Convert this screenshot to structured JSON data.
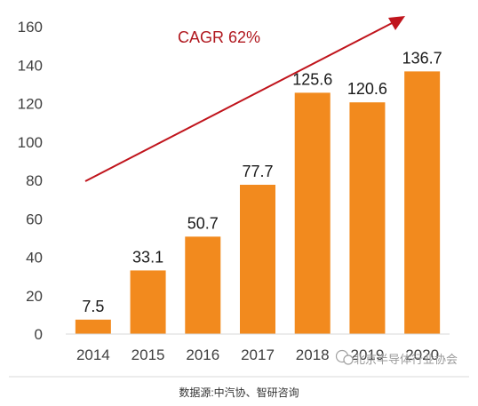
{
  "chart_data": {
    "type": "bar",
    "categories": [
      "2014",
      "2015",
      "2016",
      "2017",
      "2018",
      "2019",
      "2020"
    ],
    "values": [
      7.5,
      33.1,
      50.7,
      77.7,
      125.6,
      120.6,
      136.7
    ],
    "data_labels": [
      "7.5",
      "33.1",
      "50.7",
      "77.7",
      "125.6",
      "120.6",
      "136.7"
    ],
    "y_ticks": [
      "0",
      "20",
      "40",
      "60",
      "80",
      "100",
      "120",
      "140",
      "160"
    ],
    "ylim": [
      0,
      160
    ],
    "grid": false,
    "legend": "none",
    "bar_color": "#f28a1e",
    "trend_color": "#c0141c",
    "annotation": "CAGR 62%"
  },
  "watermark": "北京半导体行业协会",
  "source_text": "数据源:中汽协、智研咨询"
}
